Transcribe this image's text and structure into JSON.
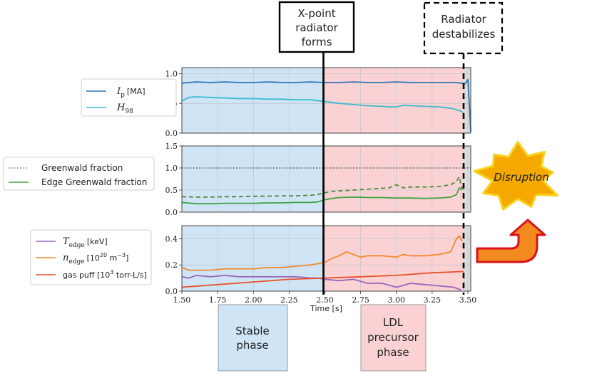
{
  "chart_data": {
    "type": "line",
    "x_range": [
      1.5,
      3.52
    ],
    "xlabel": "Time [s]",
    "x_ticks": [
      "1.50",
      "1.75",
      "2.00",
      "2.25",
      "2.50",
      "2.75",
      "3.00",
      "3.25",
      "3.50"
    ],
    "x_tick_values": [
      1.5,
      1.75,
      2.0,
      2.25,
      2.5,
      2.75,
      3.0,
      3.25,
      3.5
    ],
    "phase_boundary_x": 2.49,
    "radiator_destabilize_x": 3.47,
    "stable_phase_color": "#cfe4f5",
    "ldl_phase_color": "#fbd2d4",
    "panels": [
      {
        "ylim": [
          0,
          1.1
        ],
        "y_ticks": [
          "0.0",
          "0.5",
          "1.0"
        ],
        "y_tick_values": [
          0,
          0.5,
          1.0
        ],
        "legend": [
          {
            "symbol": "I",
            "subscript": "p",
            "unit": "[MA]",
            "color": "#2e75b6",
            "style": "solid"
          },
          {
            "symbol": "H",
            "subscript": "98",
            "unit": "",
            "color": "#3bbbd0",
            "style": "solid"
          }
        ],
        "series": [
          {
            "name": "Ip [MA]",
            "color": "#2e75b6",
            "style": "solid",
            "x": [
              1.5,
              1.55,
              1.6,
              1.7,
              1.8,
              1.9,
              2.0,
              2.1,
              2.2,
              2.3,
              2.4,
              2.5,
              2.6,
              2.7,
              2.8,
              2.9,
              3.0,
              3.1,
              3.2,
              3.3,
              3.4,
              3.45,
              3.48,
              3.5,
              3.51,
              3.52
            ],
            "y": [
              0.84,
              0.85,
              0.86,
              0.85,
              0.86,
              0.85,
              0.85,
              0.86,
              0.85,
              0.85,
              0.86,
              0.85,
              0.85,
              0.86,
              0.85,
              0.85,
              0.86,
              0.85,
              0.85,
              0.85,
              0.85,
              0.84,
              0.83,
              0.9,
              0.5,
              0.02
            ]
          },
          {
            "name": "H98",
            "color": "#3bbbd0",
            "style": "solid",
            "x": [
              1.5,
              1.55,
              1.6,
              1.7,
              1.8,
              1.9,
              2.0,
              2.1,
              2.2,
              2.3,
              2.4,
              2.5,
              2.6,
              2.7,
              2.8,
              2.9,
              2.95,
              3.0,
              3.05,
              3.1,
              3.2,
              3.3,
              3.4,
              3.45,
              3.47
            ],
            "y": [
              0.54,
              0.6,
              0.61,
              0.6,
              0.59,
              0.58,
              0.58,
              0.57,
              0.57,
              0.56,
              0.56,
              0.53,
              0.5,
              0.48,
              0.46,
              0.45,
              0.44,
              0.44,
              0.47,
              0.46,
              0.45,
              0.44,
              0.41,
              0.37,
              0.34
            ]
          }
        ]
      },
      {
        "ylim": [
          0,
          1.5
        ],
        "y_ticks": [
          "0.0",
          "0.5",
          "1.0",
          "1.5"
        ],
        "y_tick_values": [
          0,
          0.5,
          1.0,
          1.5
        ],
        "legend": [
          {
            "label": "Greenwald fraction",
            "color": "#4e8a3a",
            "style": "dotted"
          },
          {
            "label": "Edge Greenwald fraction",
            "color": "#3fa344",
            "style": "solid"
          }
        ],
        "series": [
          {
            "name": "Greenwald fraction (dashed)",
            "color": "#4e8a3a",
            "style": "dashed",
            "x": [
              1.5,
              1.6,
              1.7,
              1.8,
              1.9,
              2.0,
              2.1,
              2.2,
              2.3,
              2.4,
              2.45,
              2.5,
              2.55,
              2.6,
              2.7,
              2.8,
              2.9,
              2.95,
              3.0,
              3.05,
              3.1,
              3.2,
              3.3,
              3.38,
              3.42,
              3.44,
              3.46
            ],
            "y": [
              0.35,
              0.34,
              0.34,
              0.35,
              0.35,
              0.36,
              0.36,
              0.37,
              0.37,
              0.38,
              0.4,
              0.44,
              0.47,
              0.48,
              0.5,
              0.52,
              0.54,
              0.55,
              0.62,
              0.55,
              0.57,
              0.57,
              0.58,
              0.62,
              0.7,
              0.8,
              0.5
            ]
          },
          {
            "name": "Edge Greenwald fraction",
            "color": "#3fa344",
            "style": "solid",
            "x": [
              1.5,
              1.6,
              1.7,
              1.8,
              1.9,
              2.0,
              2.1,
              2.2,
              2.3,
              2.4,
              2.45,
              2.5,
              2.55,
              2.6,
              2.7,
              2.8,
              2.9,
              3.0,
              3.1,
              3.2,
              3.3,
              3.38,
              3.42,
              3.44,
              3.46
            ],
            "y": [
              0.22,
              0.19,
              0.19,
              0.2,
              0.2,
              0.2,
              0.21,
              0.21,
              0.22,
              0.22,
              0.23,
              0.28,
              0.31,
              0.33,
              0.34,
              0.33,
              0.33,
              0.32,
              0.32,
              0.31,
              0.32,
              0.34,
              0.4,
              0.55,
              0.52
            ]
          },
          {
            "name": "Greenwald = 1 reference",
            "color": "#444444",
            "style": "dotted",
            "x": [
              1.5,
              3.52
            ],
            "y": [
              1.0,
              1.0
            ]
          }
        ]
      },
      {
        "ylim": [
          0,
          0.5
        ],
        "y_ticks": [
          "0.0",
          "0.2",
          "0.4"
        ],
        "y_tick_values": [
          0,
          0.2,
          0.4
        ],
        "legend": [
          {
            "symbol": "T",
            "subscript": "edge",
            "unit": "[keV]",
            "color": "#9467bd",
            "style": "solid"
          },
          {
            "symbol": "n",
            "subscript": "edge",
            "unit": "[10",
            "unit_sup": "20",
            "unit_tail": " m",
            "unit_sup2": "−3",
            "unit_close": "]",
            "color": "#f28a2e",
            "style": "solid"
          },
          {
            "label": "gas puff [10",
            "label_sup": "3",
            "label_tail": " torr-L/s]",
            "color": "#e8502a",
            "style": "solid"
          }
        ],
        "series": [
          {
            "name": "T_edge [keV]",
            "color": "#9467bd",
            "style": "solid",
            "x": [
              1.5,
              1.55,
              1.6,
              1.7,
              1.8,
              1.9,
              2.0,
              2.1,
              2.2,
              2.3,
              2.4,
              2.45,
              2.5,
              2.6,
              2.7,
              2.8,
              2.9,
              3.0,
              3.1,
              3.2,
              3.3,
              3.4,
              3.45
            ],
            "y": [
              0.11,
              0.1,
              0.12,
              0.11,
              0.12,
              0.11,
              0.11,
              0.11,
              0.11,
              0.11,
              0.1,
              0.1,
              0.09,
              0.08,
              0.09,
              0.06,
              0.06,
              0.03,
              0.06,
              0.05,
              0.04,
              0.03,
              0.01
            ]
          },
          {
            "name": "n_edge [10^20 m^-3]",
            "color": "#f28a2e",
            "style": "solid",
            "x": [
              1.5,
              1.55,
              1.6,
              1.7,
              1.8,
              1.9,
              2.0,
              2.1,
              2.2,
              2.3,
              2.4,
              2.45,
              2.5,
              2.55,
              2.6,
              2.65,
              2.7,
              2.75,
              2.8,
              2.9,
              3.0,
              3.05,
              3.1,
              3.2,
              3.3,
              3.38,
              3.42,
              3.44,
              3.46
            ],
            "y": [
              0.18,
              0.16,
              0.16,
              0.16,
              0.17,
              0.17,
              0.17,
              0.18,
              0.18,
              0.19,
              0.2,
              0.21,
              0.22,
              0.25,
              0.27,
              0.3,
              0.28,
              0.26,
              0.27,
              0.27,
              0.26,
              0.28,
              0.27,
              0.27,
              0.28,
              0.3,
              0.4,
              0.42,
              0.38
            ]
          },
          {
            "name": "gas puff [10^3 torr-L/s]",
            "color": "#e8502a",
            "style": "solid",
            "x": [
              1.5,
              1.75,
              2.0,
              2.25,
              2.5,
              2.75,
              3.0,
              3.25,
              3.47
            ],
            "y": [
              0.03,
              0.05,
              0.07,
              0.09,
              0.1,
              0.11,
              0.12,
              0.14,
              0.15
            ]
          }
        ]
      }
    ]
  },
  "annotations": {
    "xpoint_box": [
      "X-point",
      "radiator",
      "forms"
    ],
    "radiator_box": [
      "Radiator",
      "destabilizes"
    ],
    "disruption": "Disruption",
    "stable_phase": [
      "Stable",
      "phase"
    ],
    "ldl_phase": [
      "LDL",
      "precursor",
      "phase"
    ],
    "burst_color": "#f5a800",
    "burst_edge": "#f7d21f",
    "arrow_fill": "#f28a1e",
    "arrow_edge": "#d8121b"
  }
}
